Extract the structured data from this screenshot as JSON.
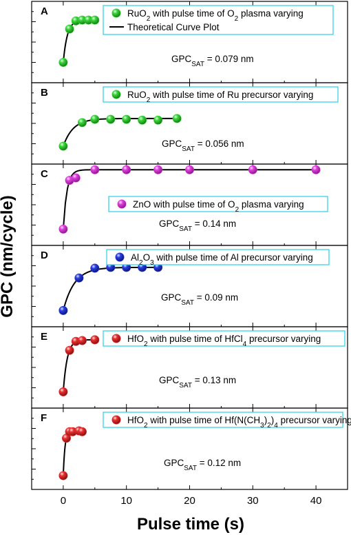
{
  "chart_data": {
    "type": "scatter",
    "xlabel": "Pulse time (s)",
    "ylabel": "GPC (nm/cycle)",
    "xlim": [
      -5,
      45
    ],
    "x_ticks": [
      "0",
      "10",
      "20",
      "30",
      "40"
    ],
    "theory_legend": "Theoretical Curve Plot",
    "panels": [
      {
        "id": "A",
        "legend": {
          "pre": "RuO",
          "sub1": "2",
          "mid": " with pulse time of O",
          "sub2": "2",
          "post": " plasma varying"
        },
        "gpc": {
          "pre": "GPC",
          "sub": "SAT",
          "post": " = 0.079 nm"
        },
        "color": "#3cd63c",
        "x": [
          0,
          1,
          2,
          3,
          4,
          5
        ],
        "y": [
          0.25,
          0.66,
          0.76,
          0.77,
          0.77,
          0.77
        ],
        "show_theory_legend": true
      },
      {
        "id": "B",
        "legend": {
          "pre": "RuO",
          "sub1": "2",
          "mid": " with pulse time of Ru precursor varying",
          "sub2": "",
          "post": ""
        },
        "gpc": {
          "pre": "GPC",
          "sub": "SAT",
          "post": " = 0.056 nm"
        },
        "color": "#3cd63c",
        "x": [
          0,
          3,
          5,
          7.5,
          10,
          12.5,
          15,
          18
        ],
        "y": [
          0.22,
          0.51,
          0.55,
          0.55,
          0.55,
          0.54,
          0.54,
          0.56
        ],
        "show_theory_legend": false
      },
      {
        "id": "C",
        "legend": {
          "pre": "ZnO with pulse time of O",
          "sub1": "2",
          "mid": " plasma varying",
          "sub2": "",
          "post": ""
        },
        "gpc": {
          "pre": "GPC",
          "sub": "SAT",
          "post": " = 0.14 nm"
        },
        "color": "#e040e0",
        "x": [
          0,
          1,
          2,
          5,
          10,
          15,
          20,
          30,
          40
        ],
        "y": [
          0.2,
          0.8,
          0.83,
          0.93,
          0.93,
          0.93,
          0.93,
          0.93,
          0.93
        ],
        "show_theory_legend": false
      },
      {
        "id": "D",
        "legend": {
          "pre": "Al",
          "sub1": "2",
          "mid": "O",
          "sub2": "3",
          "post": " with pulse time of Al precursor varying"
        },
        "gpc": {
          "pre": "GPC",
          "sub": "SAT",
          "post": " = 0.09 nm"
        },
        "color": "#2a3ee0",
        "x": [
          0,
          2.5,
          5,
          7.5,
          10,
          12.5,
          15
        ],
        "y": [
          0.2,
          0.6,
          0.72,
          0.73,
          0.73,
          0.73,
          0.73
        ],
        "show_theory_legend": false
      },
      {
        "id": "E",
        "legend": {
          "pre": "HfO",
          "sub1": "2",
          "mid": " with pulse time of HfCl",
          "sub2": "4",
          "post": " precursor varying"
        },
        "gpc": {
          "pre": "GPC",
          "sub": "SAT",
          "post": " = 0.13 nm"
        },
        "color": "#e83030",
        "x": [
          0,
          1,
          2,
          3,
          5
        ],
        "y": [
          0.2,
          0.71,
          0.82,
          0.83,
          0.84
        ],
        "show_theory_legend": false
      },
      {
        "id": "F",
        "legend": {
          "pre": "HfO",
          "sub1": "2",
          "mid": " with pulse time of Hf(N(CH",
          "sub2": "3",
          "post": ")"
        },
        "legend_extra": {
          "sub3": "2",
          "post2": ")",
          "sub4": "4",
          "post3": " precursor varying"
        },
        "gpc": {
          "pre": "GPC",
          "sub": "SAT",
          "post": " = 0.12 nm"
        },
        "color": "#e83030",
        "x": [
          0,
          0.5,
          1,
          1.5,
          2.5,
          3
        ],
        "y": [
          0.17,
          0.63,
          0.71,
          0.71,
          0.72,
          0.71
        ],
        "show_theory_legend": false
      }
    ]
  }
}
